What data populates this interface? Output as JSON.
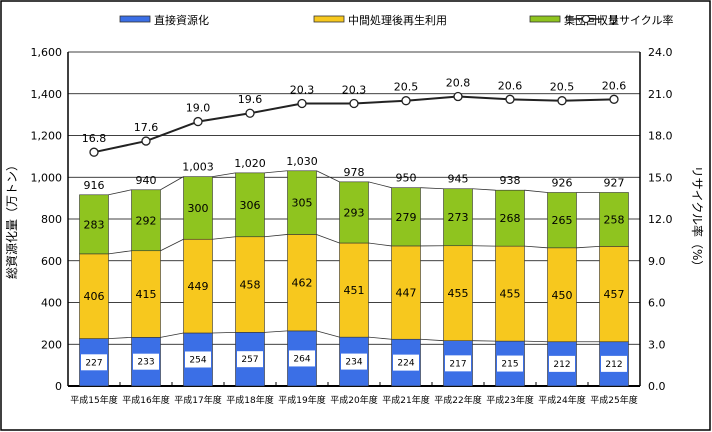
{
  "chart_data": {
    "type": "bar",
    "stacked": true,
    "categories": [
      "平成15年度",
      "平成16年度",
      "平成17年度",
      "平成18年度",
      "平成19年度",
      "平成20年度",
      "平成21年度",
      "平成22年度",
      "平成23年度",
      "平成24年度",
      "平成25年度"
    ],
    "series": [
      {
        "name": "直接資源化",
        "values": [
          227,
          233,
          254,
          257,
          264,
          234,
          224,
          217,
          215,
          212,
          212
        ],
        "color": "#3b6fe6"
      },
      {
        "name": "中間処理後再生利用",
        "values": [
          406,
          415,
          449,
          458,
          462,
          451,
          447,
          455,
          455,
          450,
          457
        ],
        "color": "#f7c81e"
      },
      {
        "name": "集団回収量",
        "values": [
          283,
          292,
          300,
          306,
          305,
          293,
          279,
          273,
          268,
          265,
          258
        ],
        "color": "#8fc41f"
      }
    ],
    "totals": [
      916,
      940,
      1003,
      1020,
      1030,
      978,
      950,
      945,
      938,
      926,
      927
    ],
    "line_series": {
      "name": "リサイクル率",
      "values": [
        16.8,
        17.6,
        19.0,
        19.6,
        20.3,
        20.3,
        20.5,
        20.8,
        20.6,
        20.5,
        20.6
      ],
      "axis": "right"
    },
    "total_labels": [
      "916",
      "940",
      "1,003",
      "1,020",
      "1,030",
      "978",
      "950",
      "945",
      "938",
      "926",
      "927"
    ],
    "ylabel": "総資源化量（万トン）",
    "y2label": "リサイクル率（%）",
    "ylim": [
      0,
      1600
    ],
    "y2lim": [
      0,
      24
    ],
    "yticks": [
      "0",
      "200",
      "400",
      "600",
      "800",
      "1,000",
      "1,200",
      "1,400",
      "1,600"
    ],
    "y2ticks": [
      "0.0",
      "3.0",
      "6.0",
      "9.0",
      "12.0",
      "15.0",
      "18.0",
      "21.0",
      "24.0"
    ],
    "legend": {
      "placement": "top",
      "items": [
        "直接資源化",
        "中間処理後再生利用",
        "集団回収量",
        "リサイクル率"
      ]
    },
    "grid": true
  }
}
